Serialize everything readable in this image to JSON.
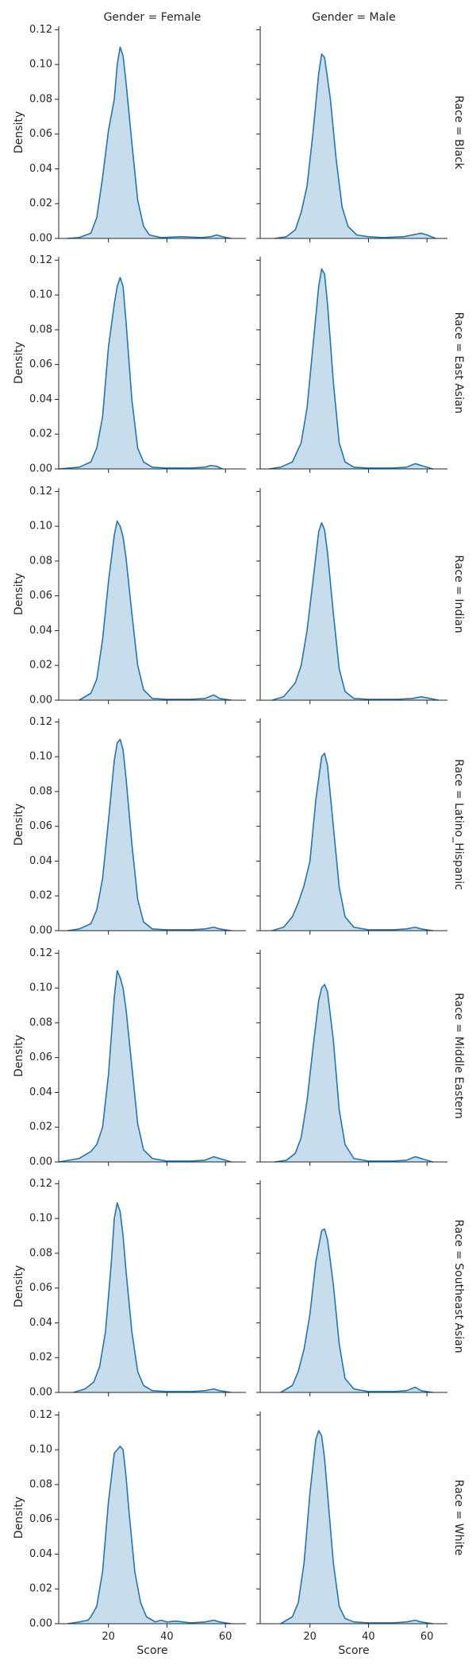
{
  "chart_data": {
    "type": "area",
    "xlabel": "Score",
    "ylabel": "Density",
    "xlim": [
      3,
      67
    ],
    "ylim": [
      0,
      0.122
    ],
    "x_ticks": [
      20,
      40,
      60
    ],
    "y_ticks": [
      0.0,
      0.02,
      0.04,
      0.06,
      0.08,
      0.1,
      0.12
    ],
    "y_tick_labels": [
      "0.00",
      "0.02",
      "0.04",
      "0.06",
      "0.08",
      "0.10",
      "0.12"
    ],
    "columns": [
      "Gender = Female",
      "Gender = Male"
    ],
    "rows": [
      "Race = Black",
      "Race = East Asian",
      "Race = Indian",
      "Race = Latino_Hispanic",
      "Race = Middle Eastern",
      "Race = Southeast Asian",
      "Race = White"
    ],
    "colors": {
      "line": "#1f77b4",
      "fill": "#1f77b4",
      "axis": "#262626"
    },
    "panels": [
      {
        "row": "Race = Black",
        "col": "Gender = Female",
        "x": [
          6,
          10,
          14,
          16,
          18,
          20,
          22,
          23,
          24,
          25,
          26,
          28,
          30,
          32,
          34,
          38,
          45,
          52,
          55,
          57,
          59,
          62
        ],
        "y": [
          0.0,
          0.0005,
          0.003,
          0.012,
          0.035,
          0.062,
          0.08,
          0.1,
          0.11,
          0.105,
          0.09,
          0.055,
          0.022,
          0.007,
          0.002,
          0.0005,
          0.001,
          0.0005,
          0.001,
          0.002,
          0.001,
          0.0
        ]
      },
      {
        "row": "Race = Black",
        "col": "Gender = Male",
        "x": [
          8,
          12,
          15,
          17,
          19,
          21,
          23,
          24,
          25,
          27,
          29,
          31,
          33,
          36,
          40,
          45,
          52,
          55,
          58,
          60,
          63
        ],
        "y": [
          0.0,
          0.001,
          0.005,
          0.015,
          0.03,
          0.06,
          0.095,
          0.106,
          0.104,
          0.08,
          0.045,
          0.018,
          0.007,
          0.002,
          0.001,
          0.0005,
          0.001,
          0.002,
          0.003,
          0.002,
          0.0
        ]
      },
      {
        "row": "Race = East Asian",
        "col": "Gender = Female",
        "x": [
          3,
          10,
          14,
          16,
          18,
          20,
          22,
          23,
          24,
          25,
          26,
          28,
          30,
          32,
          35,
          40,
          48,
          53,
          55,
          57,
          59
        ],
        "y": [
          0.0,
          0.001,
          0.004,
          0.012,
          0.03,
          0.07,
          0.095,
          0.105,
          0.11,
          0.105,
          0.085,
          0.04,
          0.012,
          0.004,
          0.001,
          0.0005,
          0.0005,
          0.001,
          0.002,
          0.0015,
          0.0
        ]
      },
      {
        "row": "Race = East Asian",
        "col": "Gender = Male",
        "x": [
          6,
          10,
          14,
          17,
          19,
          21,
          23,
          24,
          25,
          26,
          28,
          30,
          32,
          35,
          40,
          48,
          53,
          56,
          58,
          62
        ],
        "y": [
          0.0,
          0.001,
          0.004,
          0.015,
          0.035,
          0.07,
          0.105,
          0.115,
          0.112,
          0.095,
          0.05,
          0.015,
          0.004,
          0.001,
          0.0005,
          0.0005,
          0.001,
          0.003,
          0.002,
          0.0
        ]
      },
      {
        "row": "Race = Indian",
        "col": "Gender = Female",
        "x": [
          10,
          14,
          16,
          18,
          20,
          22,
          23,
          24,
          25,
          26,
          28,
          30,
          32,
          35,
          40,
          48,
          53,
          56,
          58,
          62
        ],
        "y": [
          0.0,
          0.004,
          0.012,
          0.035,
          0.068,
          0.095,
          0.103,
          0.1,
          0.094,
          0.082,
          0.05,
          0.02,
          0.006,
          0.001,
          0.0005,
          0.0005,
          0.001,
          0.003,
          0.001,
          0.0
        ]
      },
      {
        "row": "Race = Indian",
        "col": "Gender = Male",
        "x": [
          7,
          11,
          13,
          15,
          17,
          19,
          21,
          23,
          24,
          25,
          26,
          28,
          30,
          32,
          35,
          40,
          50,
          55,
          58,
          61,
          64
        ],
        "y": [
          0.0,
          0.002,
          0.006,
          0.01,
          0.02,
          0.04,
          0.068,
          0.097,
          0.102,
          0.098,
          0.085,
          0.05,
          0.018,
          0.005,
          0.001,
          0.0005,
          0.0005,
          0.001,
          0.002,
          0.001,
          0.0
        ]
      },
      {
        "row": "Race = Latino_Hispanic",
        "col": "Gender = Female",
        "x": [
          6,
          10,
          14,
          16,
          18,
          20,
          22,
          23,
          24,
          25,
          26,
          28,
          30,
          32,
          35,
          40,
          48,
          53,
          56,
          58,
          62
        ],
        "y": [
          0.0,
          0.001,
          0.004,
          0.012,
          0.03,
          0.063,
          0.098,
          0.108,
          0.11,
          0.104,
          0.088,
          0.05,
          0.018,
          0.005,
          0.001,
          0.0005,
          0.0005,
          0.001,
          0.002,
          0.001,
          0.0
        ]
      },
      {
        "row": "Race = Latino_Hispanic",
        "col": "Gender = Male",
        "x": [
          7,
          11,
          14,
          16,
          18,
          20,
          22,
          24,
          25,
          26,
          28,
          30,
          32,
          35,
          40,
          48,
          53,
          56,
          58,
          62
        ],
        "y": [
          0.0,
          0.002,
          0.008,
          0.016,
          0.026,
          0.04,
          0.075,
          0.1,
          0.102,
          0.095,
          0.06,
          0.025,
          0.008,
          0.002,
          0.0005,
          0.0005,
          0.001,
          0.002,
          0.001,
          0.0
        ]
      },
      {
        "row": "Race = Middle Eastern",
        "col": "Gender = Female",
        "x": [
          3,
          10,
          14,
          16,
          18,
          20,
          22,
          23,
          24,
          25,
          26,
          28,
          30,
          32,
          35,
          40,
          48,
          53,
          56,
          58,
          62
        ],
        "y": [
          0.0,
          0.002,
          0.006,
          0.01,
          0.02,
          0.05,
          0.095,
          0.11,
          0.106,
          0.1,
          0.088,
          0.055,
          0.022,
          0.007,
          0.002,
          0.0005,
          0.0005,
          0.001,
          0.003,
          0.002,
          0.0
        ]
      },
      {
        "row": "Race = Middle Eastern",
        "col": "Gender = Male",
        "x": [
          8,
          12,
          15,
          17,
          19,
          21,
          23,
          24,
          25,
          26,
          28,
          30,
          32,
          35,
          40,
          48,
          53,
          56,
          58,
          62
        ],
        "y": [
          0.0,
          0.001,
          0.005,
          0.014,
          0.035,
          0.065,
          0.093,
          0.1,
          0.102,
          0.098,
          0.07,
          0.03,
          0.01,
          0.002,
          0.0005,
          0.0005,
          0.001,
          0.003,
          0.002,
          0.0
        ]
      },
      {
        "row": "Race = Southeast Asian",
        "col": "Gender = Female",
        "x": [
          8,
          12,
          15,
          17,
          19,
          21,
          22,
          23,
          24,
          25,
          26,
          28,
          30,
          32,
          35,
          40,
          48,
          53,
          56,
          58,
          62
        ],
        "y": [
          0.0,
          0.002,
          0.006,
          0.015,
          0.035,
          0.075,
          0.1,
          0.109,
          0.104,
          0.09,
          0.07,
          0.035,
          0.012,
          0.004,
          0.001,
          0.0005,
          0.0005,
          0.001,
          0.002,
          0.001,
          0.0
        ]
      },
      {
        "row": "Race = Southeast Asian",
        "col": "Gender = Male",
        "x": [
          10,
          14,
          16,
          18,
          20,
          22,
          24,
          25,
          26,
          28,
          30,
          32,
          35,
          40,
          48,
          53,
          56,
          58,
          62
        ],
        "y": [
          0.0,
          0.004,
          0.012,
          0.025,
          0.045,
          0.075,
          0.093,
          0.094,
          0.088,
          0.062,
          0.028,
          0.008,
          0.002,
          0.0005,
          0.0005,
          0.001,
          0.003,
          0.001,
          0.0
        ]
      },
      {
        "row": "Race = White",
        "col": "Gender = Female",
        "x": [
          6,
          10,
          13,
          14,
          16,
          18,
          20,
          22,
          23,
          24,
          25,
          26,
          27,
          29,
          31,
          33,
          36,
          38,
          40,
          43,
          48,
          53,
          56,
          58,
          62
        ],
        "y": [
          0.0,
          0.001,
          0.002,
          0.004,
          0.01,
          0.03,
          0.07,
          0.098,
          0.1,
          0.102,
          0.1,
          0.085,
          0.065,
          0.03,
          0.012,
          0.004,
          0.001,
          0.002,
          0.001,
          0.0015,
          0.0005,
          0.001,
          0.002,
          0.001,
          0.0
        ]
      },
      {
        "row": "Race = White",
        "col": "Gender = Male",
        "x": [
          10,
          14,
          16,
          18,
          20,
          22,
          23,
          24,
          25,
          26,
          28,
          30,
          32,
          35,
          40,
          48,
          53,
          56,
          58,
          62
        ],
        "y": [
          0.0,
          0.004,
          0.012,
          0.035,
          0.075,
          0.106,
          0.111,
          0.108,
          0.095,
          0.075,
          0.035,
          0.01,
          0.003,
          0.001,
          0.0005,
          0.0005,
          0.001,
          0.002,
          0.001,
          0.0
        ]
      }
    ]
  }
}
